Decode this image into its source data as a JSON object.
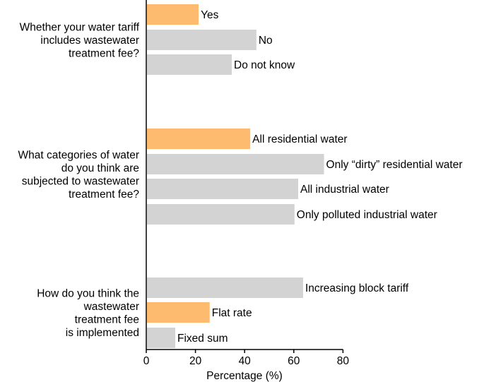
{
  "chart_data": {
    "type": "bar",
    "orientation": "horizontal",
    "xlabel": "Percentage (%)",
    "xlim": [
      0,
      80
    ],
    "xticks": [
      "0",
      "20",
      "40",
      "60",
      "80"
    ],
    "colors": {
      "highlight": "#FDBB6F",
      "default": "#D3D3D3"
    },
    "groups": [
      {
        "question": [
          "Whether your water tariff",
          "includes wastewater",
          "treatment fee?"
        ],
        "bars": [
          {
            "label": "Yes",
            "value": 21,
            "highlight": true
          },
          {
            "label": "No",
            "value": 44.5,
            "highlight": false
          },
          {
            "label": "Do not know",
            "value": 34.5,
            "highlight": false
          }
        ]
      },
      {
        "question": [
          "What categories of water",
          "do you think are",
          "subjected to wastewater",
          "treatment fee?"
        ],
        "bars": [
          {
            "label": "All residential water",
            "value": 42,
            "highlight": true
          },
          {
            "label": "Only “dirty” residential water",
            "value": 72,
            "highlight": false
          },
          {
            "label": "All industrial water",
            "value": 61.5,
            "highlight": false
          },
          {
            "label": "Only polluted industrial water",
            "value": 60,
            "highlight": false
          }
        ]
      },
      {
        "question": [
          "How do you think the",
          "wastewater",
          "treatment fee",
          "is implemented"
        ],
        "bars": [
          {
            "label": "Increasing block tariff",
            "value": 63.5,
            "highlight": false
          },
          {
            "label": "Flat rate",
            "value": 25.5,
            "highlight": true
          },
          {
            "label": "Fixed sum",
            "value": 11.5,
            "highlight": false
          }
        ]
      }
    ]
  }
}
